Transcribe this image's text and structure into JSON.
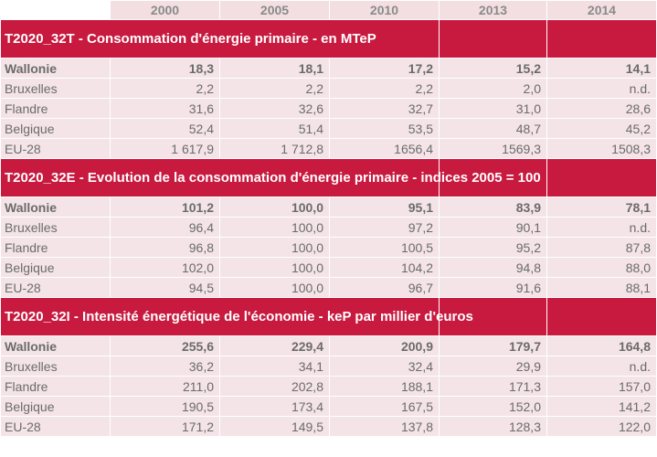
{
  "header": {
    "columns": [
      "2000",
      "2005",
      "2010",
      "2013",
      "2014"
    ]
  },
  "sections": [
    {
      "title": "T2020_32T - Consommation d'énergie primaire - en MTeP",
      "rows": [
        [
          "Wallonie",
          "18,3",
          "18,1",
          "17,2",
          "15,2",
          "14,1"
        ],
        [
          "Bruxelles",
          "2,2",
          "2,2",
          "2,2",
          "2,0",
          "n.d."
        ],
        [
          "Flandre",
          "31,6",
          "32,6",
          "32,7",
          "31,0",
          "28,6"
        ],
        [
          "Belgique",
          "52,4",
          "51,4",
          "53,5",
          "48,7",
          "45,2"
        ],
        [
          "EU-28",
          "1 617,9",
          "1 712,8",
          "1656,4",
          "1569,3",
          "1508,3"
        ]
      ]
    },
    {
      "title": "T2020_32E - Evolution de la consommation d'énergie primaire - indices 2005 = 100",
      "rows": [
        [
          "Wallonie",
          "101,2",
          "100,0",
          "95,1",
          "83,9",
          "78,1"
        ],
        [
          "Bruxelles",
          "96,4",
          "100,0",
          "97,2",
          "90,1",
          "n.d."
        ],
        [
          "Flandre",
          "96,8",
          "100,0",
          "100,5",
          "95,2",
          "87,8"
        ],
        [
          "Belgique",
          "102,0",
          "100,0",
          "104,2",
          "94,8",
          "88,0"
        ],
        [
          "EU-28",
          "94,5",
          "100,0",
          "96,7",
          "91,6",
          "88,1"
        ]
      ]
    },
    {
      "title": "T2020_32I - Intensité énergétique de l'économie - keP par millier d'euros",
      "rows": [
        [
          "Wallonie",
          "255,6",
          "229,4",
          "200,9",
          "179,7",
          "164,8"
        ],
        [
          "Bruxelles",
          "36,2",
          "34,1",
          "32,4",
          "29,9",
          "n.d."
        ],
        [
          "Flandre",
          "211,0",
          "202,8",
          "188,1",
          "171,3",
          "157,0"
        ],
        [
          "Belgique",
          "190,5",
          "173,4",
          "167,5",
          "152,0",
          "141,2"
        ],
        [
          "EU-28",
          "171,2",
          "149,5",
          "137,8",
          "128,3",
          "122,0"
        ]
      ]
    }
  ]
}
